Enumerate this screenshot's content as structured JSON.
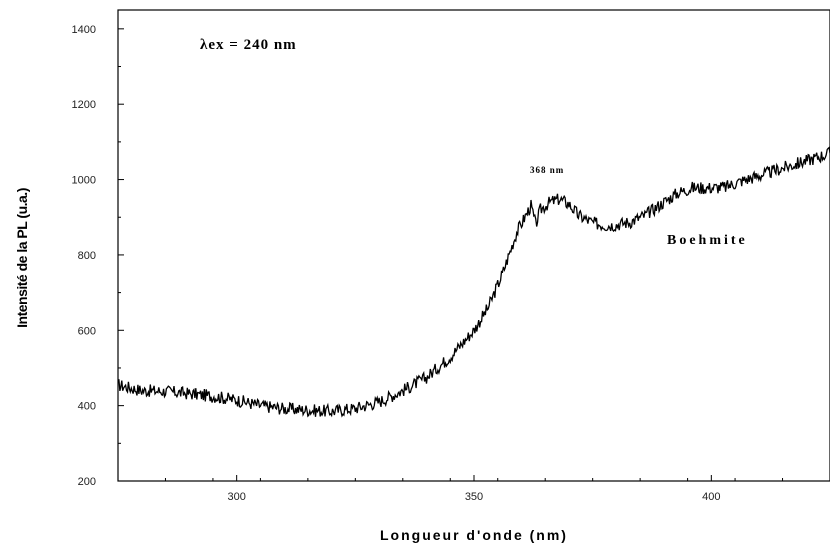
{
  "chart_data": {
    "type": "line",
    "title": "",
    "xlabel": "Longueur d'onde (nm)",
    "ylabel": "Intensité de la PL (u.a.)",
    "xlim": [
      275,
      425
    ],
    "ylim": [
      200,
      1450
    ],
    "x_ticks": [
      300,
      350,
      400
    ],
    "y_ticks": [
      200,
      400,
      600,
      800,
      1000,
      1200,
      1400
    ],
    "grid": false,
    "annotations": {
      "excitation": "λex = 240 nm",
      "peak": "368 nm",
      "sample": "Boehmite"
    },
    "series": [
      {
        "name": "Boehmite",
        "color": "#000000",
        "x": [
          275,
          280,
          285,
          290,
          295,
          300,
          305,
          310,
          315,
          320,
          325,
          330,
          335,
          340,
          345,
          350,
          353,
          356,
          359,
          362,
          363,
          364,
          366,
          368,
          370,
          372,
          375,
          378,
          380,
          383,
          386,
          390,
          393,
          396,
          400,
          403,
          406,
          410,
          415,
          420,
          425
        ],
        "values": [
          455,
          440,
          438,
          432,
          425,
          415,
          400,
          392,
          388,
          385,
          393,
          410,
          440,
          475,
          530,
          600,
          660,
          750,
          860,
          930,
          880,
          920,
          940,
          948,
          935,
          905,
          885,
          878,
          880,
          888,
          905,
          940,
          965,
          978,
          978,
          980,
          995,
          1010,
          1030,
          1050,
          1070
        ]
      }
    ]
  }
}
